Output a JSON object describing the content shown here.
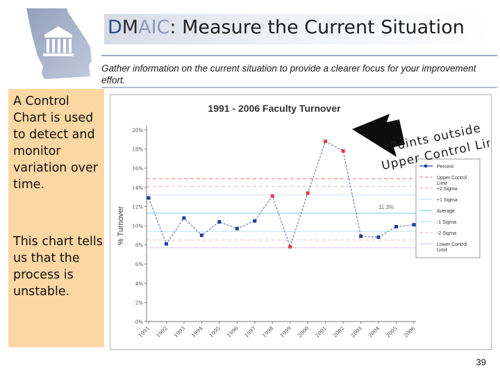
{
  "header": {
    "title_d": "D",
    "title_m": "M",
    "title_aic": "AIC",
    "title_rest": ": Measure the Current Situation",
    "subtitle": "Gather information on the current situation to provide a clearer focus for your improvement effort."
  },
  "sidebar": {
    "text1": "A Control Chart is used to detect and monitor variation over time.",
    "text2": "This chart tells us that the process is unstable."
  },
  "callout": {
    "line1": "Points outside",
    "line2": "Upper Control Limit"
  },
  "footer": {
    "page_number": "39"
  },
  "colors": {
    "sidebar_bg": "#fcd7a4",
    "title_dark_blue": "#2e4a86",
    "title_light_blue": "#8a9ab8",
    "percent_series": "#1f3fa0",
    "out_of_control_points": "#e83a3a",
    "ucl_line": "#e49090",
    "sigma2": "#f2b8b8",
    "sigma1": "#b8e2f0",
    "average": "#7fd4e6",
    "lcl_line": "#d8c8e8"
  },
  "chart_data": {
    "type": "line",
    "title": "1991 - 2006 Faculty Turnover",
    "xlabel": "",
    "ylabel": "% Turnover",
    "categories": [
      "1991",
      "1992",
      "1993",
      "1994",
      "1995",
      "1996",
      "1997",
      "1998",
      "1999",
      "2000",
      "2001",
      "2002",
      "2003",
      "2004",
      "2005",
      "2006"
    ],
    "ylim": [
      0,
      20
    ],
    "yticks": [
      "0%",
      "2%",
      "4%",
      "6%",
      "8%",
      "10%",
      "12%",
      "14%",
      "16%",
      "18%",
      "20%"
    ],
    "grid": false,
    "legend_position": "right",
    "series": [
      {
        "name": "Percent",
        "values": [
          12.9,
          8.1,
          10.8,
          9.0,
          10.4,
          9.7,
          10.5,
          13.1,
          7.8,
          13.4,
          18.8,
          17.8,
          8.9,
          8.8,
          9.9,
          10.1
        ],
        "out_of_control_indices": [
          7,
          8,
          9,
          10,
          11
        ]
      }
    ],
    "limits": [
      {
        "name": "Upper Control Limit",
        "value": 14.9
      },
      {
        "name": "+2 Sigma",
        "value": 14.1
      },
      {
        "name": "+1 Sigma",
        "value": 13.2
      },
      {
        "name": "Average",
        "value": 11.3
      },
      {
        "name": "-1 Sigma",
        "value": 9.4
      },
      {
        "name": "-2 Sigma",
        "value": 8.5
      },
      {
        "name": "Lower Control Limit",
        "value": 7.7
      }
    ],
    "annotations": [
      {
        "text": "11.3%"
      }
    ],
    "legend": [
      "Percent",
      "Upper Control Limit",
      "+2 Sigma",
      "+1 Sigma",
      "Average",
      "-1 Sigma",
      "-2 Sigma",
      "Lower Control Limit"
    ]
  }
}
